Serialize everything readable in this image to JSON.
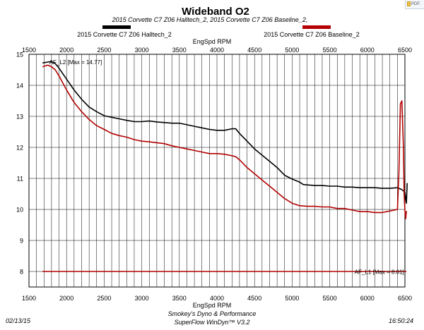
{
  "badge": {
    "label": "PDF."
  },
  "chart_data": {
    "type": "line",
    "title": "Wideband O2",
    "subtitle": "2015 Corvette C7 Z06 Halltech_2, 2015 Corvette C7 Z06 Baseline_2,",
    "xlabel": "EngSpd RPM",
    "ylabel": "",
    "xlim": [
      1500,
      6500
    ],
    "ylim": [
      7.5,
      15
    ],
    "grid": true,
    "x_ticks": [
      1500,
      2000,
      2500,
      3000,
      3500,
      4000,
      4500,
      5000,
      5500,
      6000,
      6500
    ],
    "y_ticks": [
      8,
      9,
      10,
      11,
      12,
      13,
      14,
      15
    ],
    "minor_x_step": 100,
    "series": [
      {
        "name": "2015 Corvette C7 Z06 Halltech_2",
        "color": "#000000",
        "x": [
          1680,
          1750,
          1800,
          1850,
          1900,
          2000,
          2100,
          2200,
          2300,
          2400,
          2500,
          2600,
          2700,
          2800,
          2900,
          3000,
          3100,
          3200,
          3300,
          3400,
          3500,
          3600,
          3700,
          3800,
          3900,
          4000,
          4100,
          4200,
          4250,
          4300,
          4400,
          4500,
          4600,
          4700,
          4800,
          4900,
          5000,
          5100,
          5150,
          5200,
          5300,
          5400,
          5500,
          5600,
          5700,
          5800,
          5900,
          6000,
          6100,
          6200,
          6300,
          6400,
          6450,
          6480,
          6500,
          6520,
          6530
        ],
        "y": [
          14.72,
          14.75,
          14.77,
          14.7,
          14.55,
          14.2,
          13.85,
          13.55,
          13.3,
          13.15,
          13.02,
          12.97,
          12.92,
          12.87,
          12.83,
          12.83,
          12.85,
          12.82,
          12.8,
          12.78,
          12.78,
          12.73,
          12.68,
          12.63,
          12.58,
          12.55,
          12.55,
          12.6,
          12.6,
          12.45,
          12.2,
          11.95,
          11.75,
          11.55,
          11.35,
          11.1,
          10.98,
          10.88,
          10.8,
          10.79,
          10.77,
          10.77,
          10.75,
          10.75,
          10.72,
          10.72,
          10.7,
          10.7,
          10.7,
          10.68,
          10.68,
          10.7,
          10.65,
          10.6,
          10.55,
          10.2,
          10.85
        ]
      },
      {
        "name": "2015 Corvette C7 Z06 Baseline_2",
        "color": "#b30000",
        "x": [
          1680,
          1750,
          1800,
          1850,
          1900,
          2000,
          2100,
          2200,
          2300,
          2400,
          2500,
          2600,
          2700,
          2800,
          2900,
          3000,
          3100,
          3200,
          3300,
          3400,
          3500,
          3600,
          3700,
          3800,
          3900,
          4000,
          4100,
          4200,
          4250,
          4300,
          4400,
          4500,
          4600,
          4700,
          4800,
          4900,
          5000,
          5100,
          5200,
          5300,
          5400,
          5500,
          5600,
          5700,
          5800,
          5900,
          6000,
          6100,
          6200,
          6300,
          6400,
          6420,
          6440,
          6460,
          6480,
          6490,
          6500,
          6510,
          6520
        ],
        "y": [
          14.6,
          14.65,
          14.6,
          14.5,
          14.3,
          13.85,
          13.45,
          13.15,
          12.9,
          12.7,
          12.58,
          12.45,
          12.38,
          12.33,
          12.25,
          12.2,
          12.18,
          12.15,
          12.12,
          12.05,
          12.0,
          11.95,
          11.9,
          11.85,
          11.8,
          11.8,
          11.78,
          11.73,
          11.7,
          11.6,
          11.35,
          11.15,
          10.95,
          10.75,
          10.55,
          10.35,
          10.2,
          10.12,
          10.1,
          10.1,
          10.08,
          10.08,
          10.03,
          10.03,
          9.98,
          9.93,
          9.93,
          9.9,
          9.9,
          9.95,
          10.0,
          11.2,
          13.4,
          13.5,
          12.0,
          10.5,
          9.95,
          9.7,
          9.95
        ]
      },
      {
        "name": "AF_L1",
        "color": "#b30000",
        "x": [
          1680,
          6520
        ],
        "y": [
          8.0,
          8.0
        ]
      }
    ],
    "annotations": [
      {
        "text": "AF_L2  [Max = 14.77]",
        "x": 1770,
        "y": 14.77
      },
      {
        "text": "AF_L1  [Max = 8.01]",
        "x": 5830,
        "y": 8.01
      }
    ],
    "legend": {
      "placement": "top"
    },
    "footer": {
      "date": "02/13/15",
      "line1": "Smokey's Dyno & Performance",
      "line2": "SuperFlow WinDyn™ V3.2",
      "time": "16:50:24"
    }
  }
}
